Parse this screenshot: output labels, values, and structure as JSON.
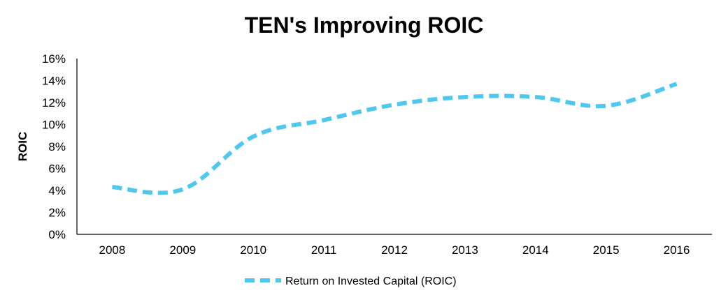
{
  "chart_data": {
    "type": "line",
    "title": "TEN's Improving ROIC",
    "xlabel": "",
    "ylabel": "ROIC",
    "categories": [
      "2008",
      "2009",
      "2010",
      "2011",
      "2012",
      "2013",
      "2014",
      "2015",
      "2016"
    ],
    "series": [
      {
        "name": "Return on Invested Capital (ROIC)",
        "values": [
          4.3,
          4.1,
          8.9,
          10.4,
          11.8,
          12.5,
          12.5,
          11.7,
          13.7
        ],
        "color": "#4fc8f0",
        "style": "dashed"
      }
    ],
    "ylim": [
      0,
      16
    ],
    "yticks": [
      "0%",
      "2%",
      "4%",
      "6%",
      "8%",
      "10%",
      "12%",
      "14%",
      "16%"
    ],
    "ytick_values": [
      0,
      2,
      4,
      6,
      8,
      10,
      12,
      14,
      16
    ],
    "grid": false,
    "legend": "bottom"
  }
}
